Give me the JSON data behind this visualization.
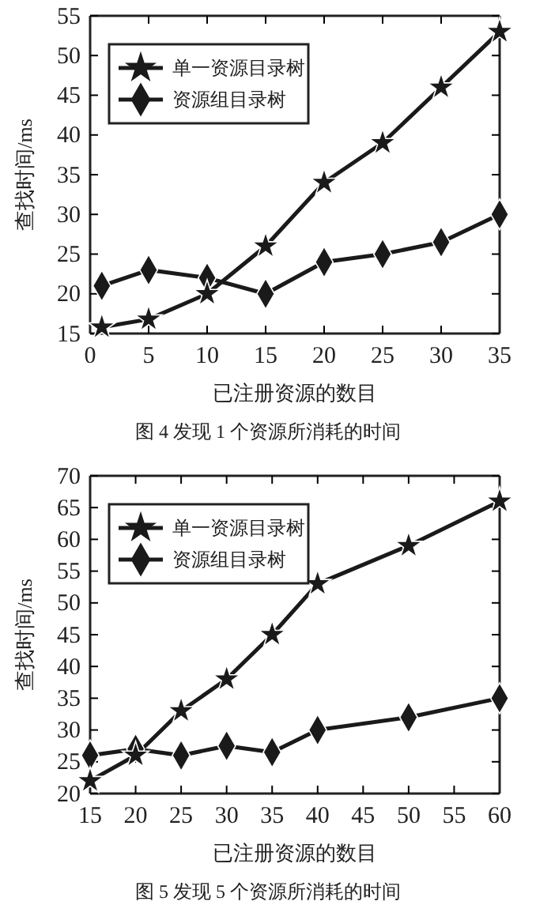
{
  "chart_data": [
    {
      "type": "line",
      "xlabel": "已注册资源的数目",
      "ylabel": "查找时间/ms",
      "x": [
        1,
        5,
        10,
        15,
        20,
        25,
        30,
        35
      ],
      "xlim": [
        0,
        35
      ],
      "xticks": [
        0,
        5,
        10,
        15,
        20,
        25,
        30,
        35
      ],
      "ylim": [
        15,
        55
      ],
      "yticks": [
        15,
        20,
        25,
        30,
        35,
        40,
        45,
        50,
        55
      ],
      "legend": "top left",
      "grid": false,
      "annotations": [
        "图 4 发现 1 个资源所消耗的时间"
      ],
      "series": [
        {
          "name": "单一资源目录树",
          "color": "#1a1a1a",
          "marker": "star",
          "values": [
            15.8,
            16.8,
            20,
            26,
            34,
            39,
            46,
            53
          ]
        },
        {
          "name": "资源组目录树",
          "color": "#1a1a1a",
          "marker": "diamond",
          "values": [
            21,
            23,
            22,
            20,
            24,
            25,
            26.5,
            30
          ]
        }
      ]
    },
    {
      "type": "line",
      "xlabel": "已注册资源的数目",
      "ylabel": "查找时间/ms",
      "x": [
        15,
        20,
        25,
        30,
        35,
        40,
        50,
        60
      ],
      "xlim": [
        15,
        60
      ],
      "xticks": [
        15,
        20,
        25,
        30,
        35,
        40,
        45,
        50,
        55,
        60
      ],
      "ylim": [
        20,
        70
      ],
      "yticks": [
        20,
        25,
        30,
        35,
        40,
        45,
        50,
        55,
        60,
        65,
        70
      ],
      "legend": "top left",
      "grid": false,
      "annotations": [
        "图 5 发现 5 个资源所消耗的时间"
      ],
      "series": [
        {
          "name": "单一资源目录树",
          "color": "#1a1a1a",
          "marker": "star",
          "values": [
            22,
            26,
            33,
            38,
            45,
            53,
            59,
            66
          ]
        },
        {
          "name": "资源组目录树",
          "color": "#1a1a1a",
          "marker": "diamond",
          "values": [
            26,
            27,
            26,
            27.5,
            26.5,
            30,
            32,
            35
          ]
        }
      ]
    }
  ]
}
